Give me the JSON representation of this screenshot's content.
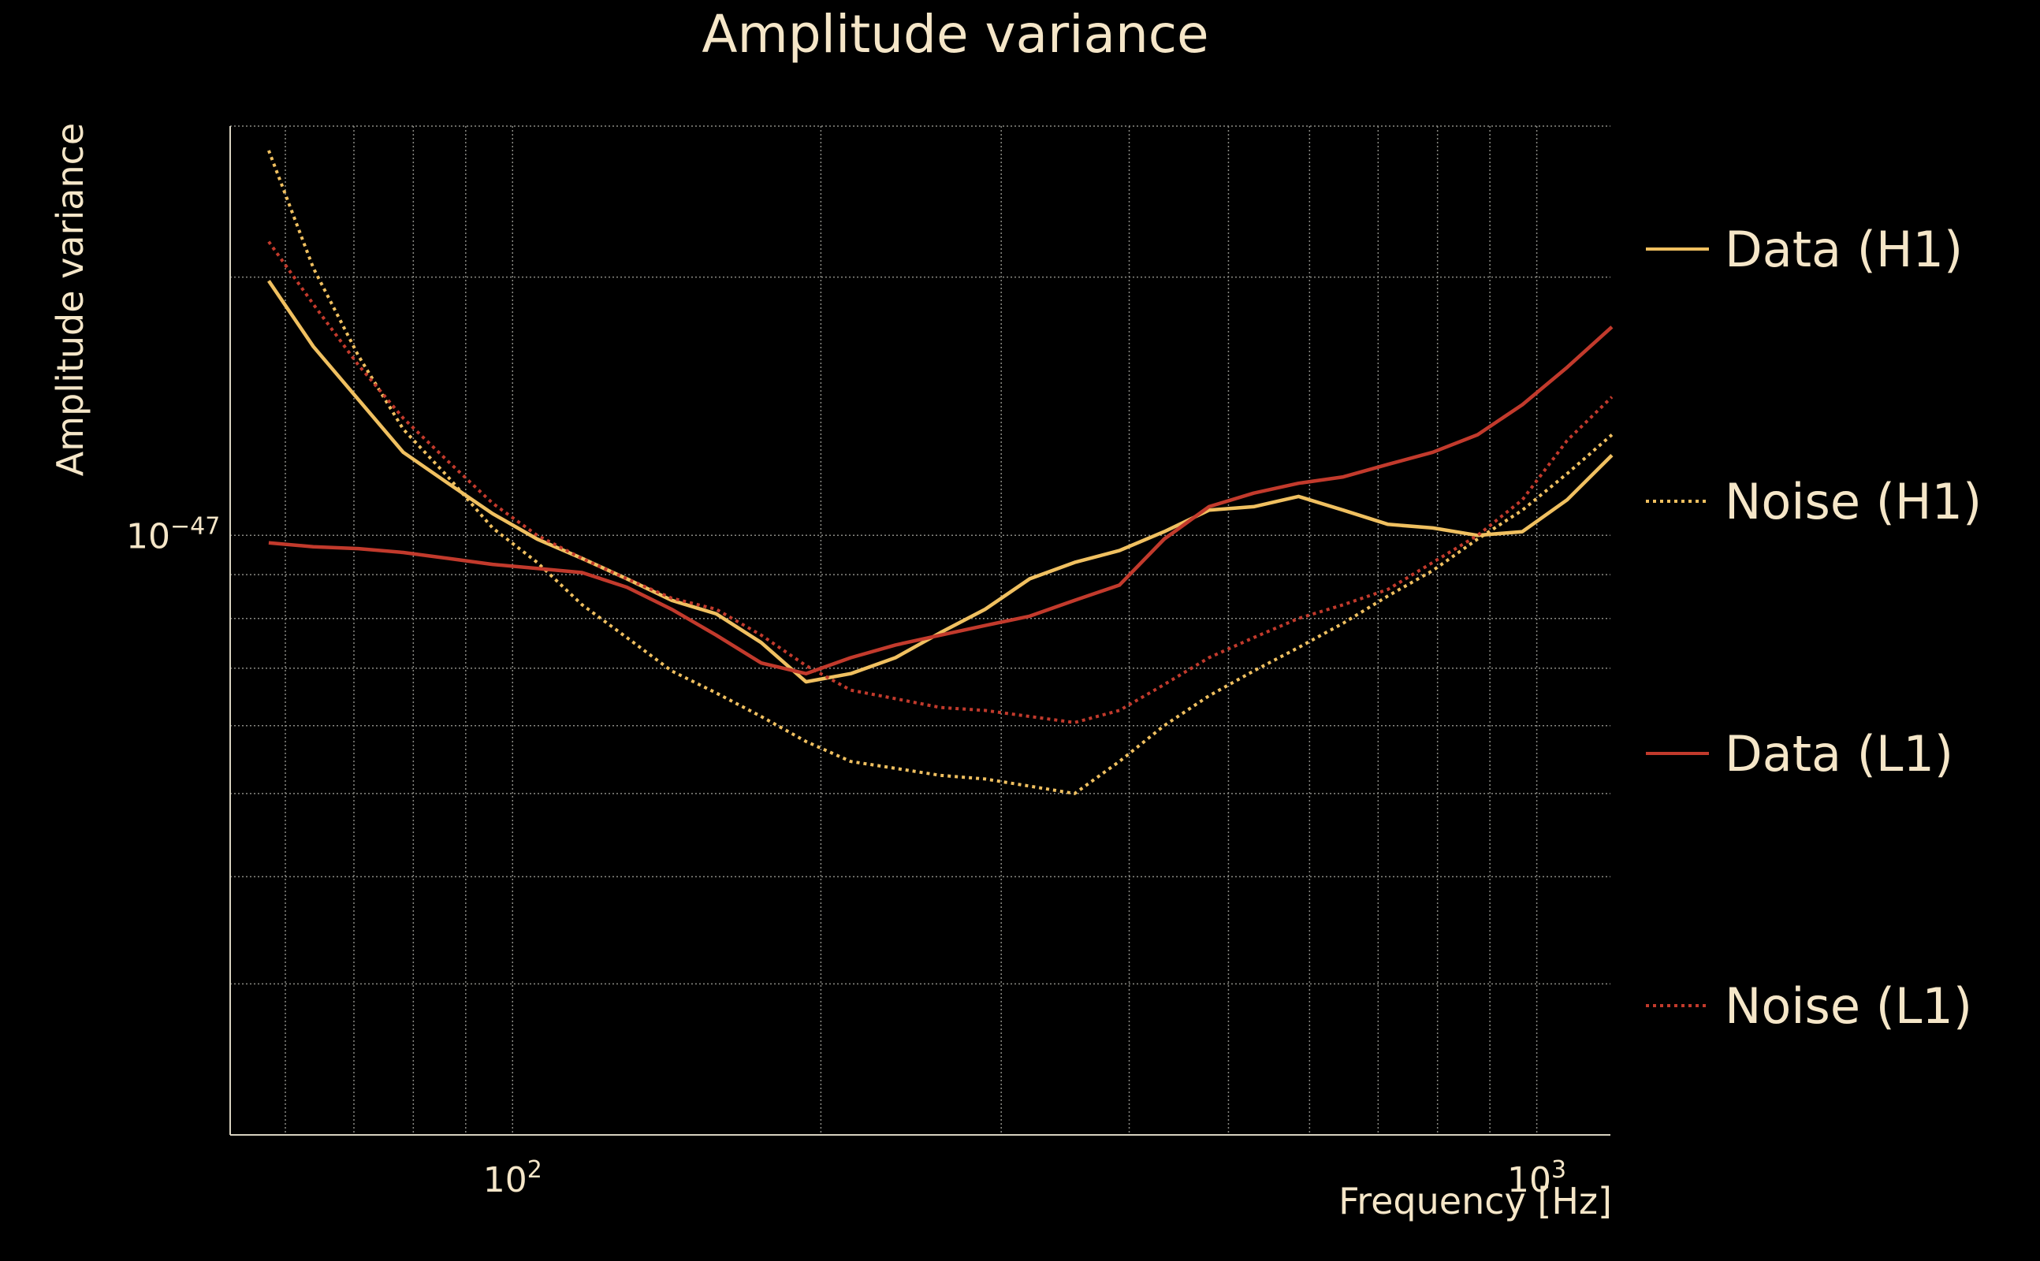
{
  "chart_data": {
    "type": "line",
    "title": "Amplitude variance",
    "xlabel": "Frequency [Hz]",
    "ylabel": "Amplitude variance",
    "x_scale": "log",
    "y_scale": "log",
    "xlim": [
      53,
      1180
    ],
    "ylim": [
      2e-48,
      3e-47
    ],
    "x_ticks": [
      {
        "value": 100,
        "base": "10",
        "exp": "2"
      },
      {
        "value": 1000,
        "base": "10",
        "exp": "3"
      }
    ],
    "y_ticks": [
      {
        "value": 1e-47,
        "base": "10",
        "exp": "−47"
      }
    ],
    "grid": true,
    "legend_position": "right",
    "series": [
      {
        "name": "Data (H1)",
        "color": "#f0c060",
        "style": "solid",
        "x": [
          57.8,
          63.9,
          70.7,
          78.2,
          86.5,
          95.6,
          105.7,
          116.9,
          129.3,
          143.0,
          158.1,
          174.9,
          193.4,
          213.9,
          236.5,
          261.6,
          289.3,
          319.9,
          353.8,
          391.3,
          432.7,
          478.5,
          529.2,
          585.3,
          647.2,
          715.8,
          791.6,
          875.4,
          968.1,
          1070.6,
          1184
        ],
        "y": [
          1.98e-47,
          1.66e-47,
          1.44e-47,
          1.25e-47,
          1.15e-47,
          1.06e-47,
          9.9e-48,
          9.4e-48,
          8.9e-48,
          8.4e-48,
          8.1e-48,
          7.5e-48,
          6.75e-48,
          6.9e-48,
          7.2e-48,
          7.7e-48,
          8.2e-48,
          8.9e-48,
          9.3e-48,
          9.6e-48,
          1.01e-47,
          1.07e-47,
          1.08e-47,
          1.11e-47,
          1.07e-47,
          1.03e-47,
          1.02e-47,
          1e-47,
          1.01e-47,
          1.1e-47,
          1.24e-47
        ]
      },
      {
        "name": "Noise (H1)",
        "color": "#f0c060",
        "style": "dotted",
        "x": [
          57.8,
          63.9,
          70.7,
          78.2,
          86.5,
          95.6,
          105.7,
          116.9,
          129.3,
          143.0,
          158.1,
          174.9,
          193.4,
          213.9,
          236.5,
          261.6,
          289.3,
          319.9,
          353.8,
          391.3,
          432.7,
          478.5,
          529.2,
          585.3,
          647.2,
          715.8,
          791.6,
          875.4,
          968.1,
          1070.6,
          1184
        ],
        "y": [
          2.81e-47,
          2.05e-47,
          1.62e-47,
          1.33e-47,
          1.17e-47,
          1.02e-47,
          9.3e-48,
          8.3e-48,
          7.6e-48,
          6.95e-48,
          6.55e-48,
          6.15e-48,
          5.75e-48,
          5.45e-48,
          5.35e-48,
          5.25e-48,
          5.2e-48,
          5.1e-48,
          5e-48,
          5.45e-48,
          6e-48,
          6.5e-48,
          6.95e-48,
          7.4e-48,
          7.9e-48,
          8.5e-48,
          9.1e-48,
          9.9e-48,
          1.07e-47,
          1.18e-47,
          1.31e-47
        ]
      },
      {
        "name": "Data (L1)",
        "color": "#c23a2c",
        "style": "solid",
        "x": [
          57.8,
          63.9,
          70.7,
          78.2,
          86.5,
          95.6,
          105.7,
          116.9,
          129.3,
          143.0,
          158.1,
          174.9,
          193.4,
          213.9,
          236.5,
          261.6,
          289.3,
          319.9,
          353.8,
          391.3,
          432.7,
          478.5,
          529.2,
          585.3,
          647.2,
          715.8,
          791.6,
          875.4,
          968.1,
          1070.6,
          1184
        ],
        "y": [
          9.8e-48,
          9.7e-48,
          9.65e-48,
          9.55e-48,
          9.4e-48,
          9.25e-48,
          9.15e-48,
          9.05e-48,
          8.7e-48,
          8.2e-48,
          7.65e-48,
          7.1e-48,
          6.9e-48,
          7.2e-48,
          7.45e-48,
          7.65e-48,
          7.85e-48,
          8.05e-48,
          8.4e-48,
          8.75e-48,
          9.9e-48,
          1.08e-47,
          1.12e-47,
          1.15e-47,
          1.17e-47,
          1.21e-47,
          1.25e-47,
          1.31e-47,
          1.42e-47,
          1.57e-47,
          1.75e-47
        ]
      },
      {
        "name": "Noise (L1)",
        "color": "#c23a2c",
        "style": "dotted",
        "x": [
          57.8,
          63.9,
          70.7,
          78.2,
          86.5,
          95.6,
          105.7,
          116.9,
          129.3,
          143.0,
          158.1,
          174.9,
          193.4,
          213.9,
          236.5,
          261.6,
          289.3,
          319.9,
          353.8,
          391.3,
          432.7,
          478.5,
          529.2,
          585.3,
          647.2,
          715.8,
          791.6,
          875.4,
          968.1,
          1070.6,
          1184
        ],
        "y": [
          2.2e-47,
          1.86e-47,
          1.58e-47,
          1.37e-47,
          1.22e-47,
          1.09e-47,
          1e-47,
          9.4e-48,
          8.9e-48,
          8.45e-48,
          8.2e-48,
          7.65e-48,
          7.05e-48,
          6.6e-48,
          6.45e-48,
          6.3e-48,
          6.25e-48,
          6.15e-48,
          6.05e-48,
          6.25e-48,
          6.7e-48,
          7.2e-48,
          7.6e-48,
          8e-48,
          8.3e-48,
          8.65e-48,
          9.3e-48,
          1e-47,
          1.1e-47,
          1.29e-47,
          1.45e-47
        ]
      }
    ]
  }
}
